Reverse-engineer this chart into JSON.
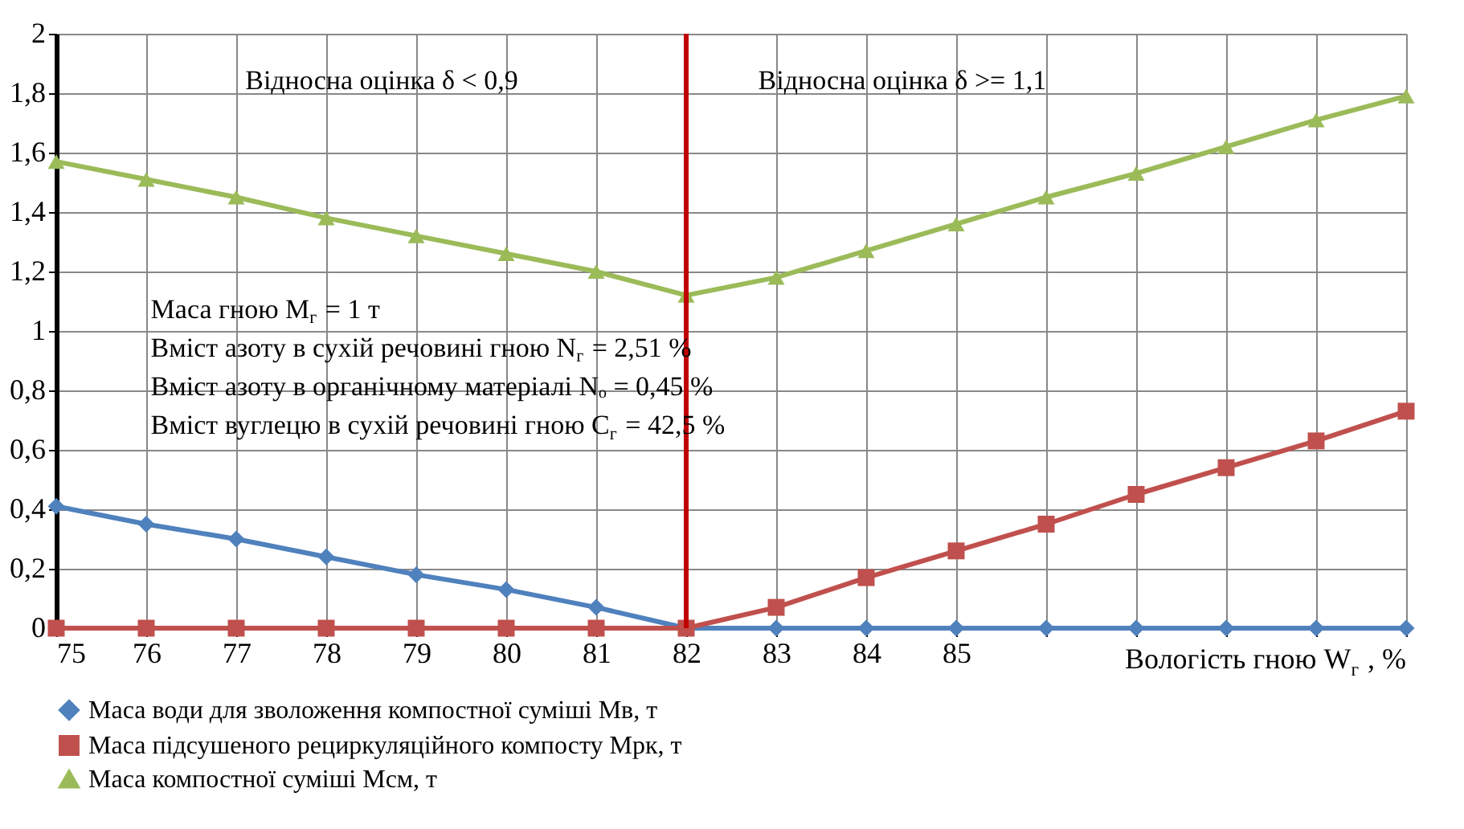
{
  "chart_data": {
    "type": "line",
    "xlabel": "Вологість гною W$_{г}$ , %",
    "x": [
      75,
      76,
      77,
      78,
      79,
      80,
      81,
      82,
      83,
      84,
      85,
      86,
      87,
      88,
      89,
      90
    ],
    "series": [
      {
        "name": "Маса води для зволоження компостної суміші Мв, т",
        "color": "#4f81bd",
        "marker": "diamond",
        "values": [
          0.41,
          0.35,
          0.3,
          0.24,
          0.18,
          0.13,
          0.07,
          0,
          0,
          0,
          0,
          0,
          0,
          0,
          0,
          0
        ]
      },
      {
        "name": "Маса підсушеного рециркуляційного компосту Мрк, т",
        "color": "#c0504d",
        "marker": "square",
        "values": [
          0,
          0,
          0,
          0,
          0,
          0,
          0,
          0,
          0.07,
          0.17,
          0.26,
          0.35,
          0.45,
          0.54,
          0.63,
          0.73
        ]
      },
      {
        "name": "Маса компостної суміші Мсм, т",
        "color": "#9bbb59",
        "marker": "triangle",
        "values": [
          1.57,
          1.51,
          1.45,
          1.38,
          1.32,
          1.26,
          1.2,
          1.12,
          1.18,
          1.27,
          1.36,
          1.45,
          1.53,
          1.62,
          1.71,
          1.79
        ]
      }
    ],
    "xlim": [
      75,
      90
    ],
    "xticks": [
      75,
      76,
      77,
      78,
      79,
      80,
      81,
      82,
      83,
      84,
      85,
      {
        "value": 86,
        "label": null
      },
      {
        "value": 87,
        "label": null
      },
      {
        "value": 88,
        "label": null
      },
      {
        "value": 89,
        "label": null
      },
      {
        "value": 90,
        "label": null
      }
    ],
    "ylim": [
      0,
      2
    ],
    "yticks": [
      0,
      {
        "value": 0.2,
        "label": "0,2"
      },
      {
        "value": 0.4,
        "label": "0,4"
      },
      {
        "value": 0.6,
        "label": "0,6"
      },
      {
        "value": 0.8,
        "label": "0,8"
      },
      1,
      {
        "value": 1.2,
        "label": "1,2"
      },
      {
        "value": 1.4,
        "label": "1,4"
      },
      {
        "value": 1.6,
        "label": "1,6"
      },
      {
        "value": 1.8,
        "label": "1,8"
      },
      2
    ],
    "ref_lines": [
      {
        "axis": "x",
        "value": 82,
        "label": null,
        "color": "#c00000"
      }
    ],
    "annotations": [
      "Відносна оцінка δ < 0,9",
      "Відносна оцінка δ >= 1,1",
      "Маса гною M$_{г}$ = 1 т",
      "Вміст азоту в сухій речовині гною N$_{г}$ = 2,51 %",
      "Вміст азоту в органічному матеріалі Nₒ = 0,45 %",
      "Вміст вуглецю в сухій речовині гною C$_{г}$ = 42,5 %"
    ],
    "grid": true,
    "legend": "bottom",
    "line_style": "solid"
  }
}
